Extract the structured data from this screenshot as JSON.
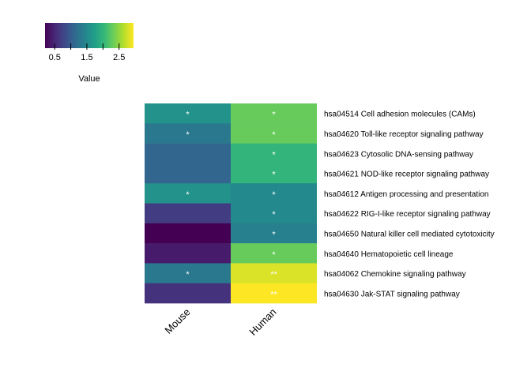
{
  "chart_data": {
    "type": "heatmap",
    "title": "",
    "xlabel": "",
    "ylabel": "",
    "columns": [
      "Mouse",
      "Human"
    ],
    "rows": [
      "hsa04514 Cell adhesion molecules (CAMs)",
      "hsa04620 Toll-like receptor signaling pathway",
      "hsa04623 Cytosolic DNA-sensing pathway",
      "hsa04621 NOD-like receptor signaling pathway",
      "hsa04612 Antigen processing and presentation",
      "hsa04622 RIG-I-like receptor signaling pathway",
      "hsa04650 Natural killer cell mediated cytotoxicity",
      "hsa04640 Hematopoietic cell lineage",
      "hsa04062 Chemokine signaling pathway",
      "hsa04630 Jak-STAT signaling pathway"
    ],
    "values": [
      [
        1.6,
        2.3
      ],
      [
        1.3,
        2.3
      ],
      [
        1.1,
        2.0
      ],
      [
        1.1,
        2.0
      ],
      [
        1.6,
        1.5
      ],
      [
        0.7,
        1.5
      ],
      [
        0.2,
        1.4
      ],
      [
        0.4,
        2.3
      ],
      [
        1.3,
        2.8
      ],
      [
        0.6,
        2.95
      ]
    ],
    "annotations": [
      [
        "*",
        "*"
      ],
      [
        "*",
        "*"
      ],
      [
        "",
        "*"
      ],
      [
        "",
        "*"
      ],
      [
        "*",
        "*"
      ],
      [
        "",
        "*"
      ],
      [
        "",
        "*"
      ],
      [
        "",
        "*"
      ],
      [
        "*",
        "**"
      ],
      [
        "",
        "**"
      ]
    ],
    "colorscale": "viridis",
    "value_range": [
      0.2,
      2.95
    ],
    "legend": {
      "title": "Value",
      "ticks": [
        0.5,
        1.5,
        2.5
      ],
      "tick_labels": [
        "0.5",
        "1.5",
        "2.5"
      ],
      "placement": "top-left"
    },
    "colors": {
      "viridis": [
        "#440154",
        "#482878",
        "#3e4989",
        "#31688e",
        "#26828e",
        "#1f9e89",
        "#35b779",
        "#6ece58",
        "#b5de2b",
        "#fde725"
      ],
      "annotation_text": "#ffffff",
      "label_text": "#000000"
    }
  }
}
